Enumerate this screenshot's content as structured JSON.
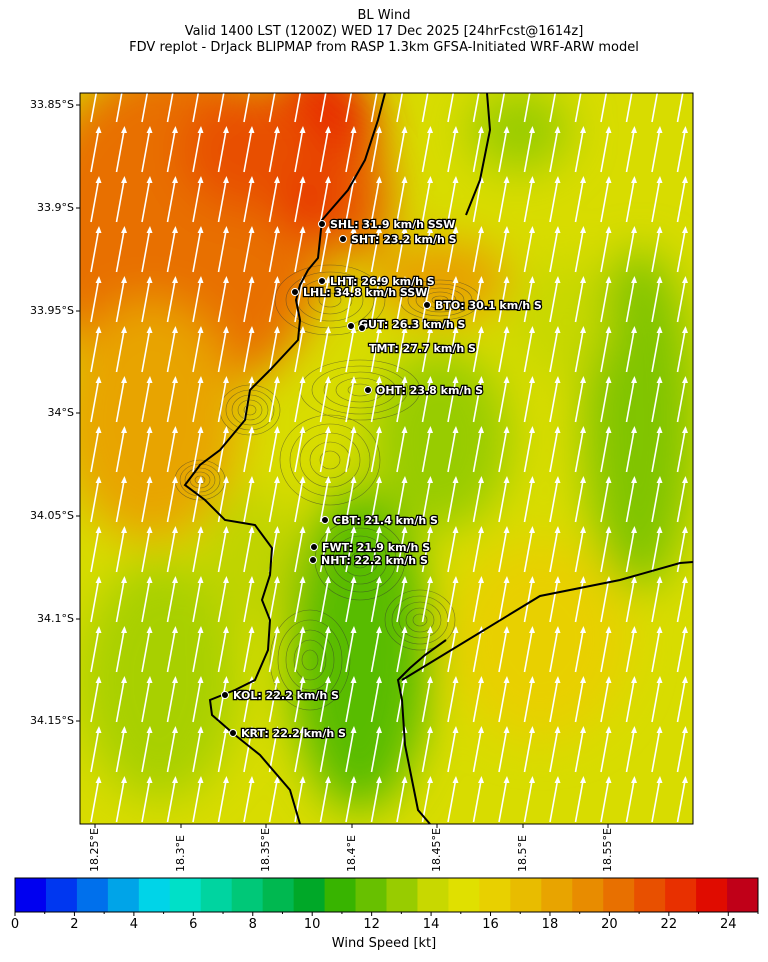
{
  "header": {
    "line1": "BL Wind",
    "line2": "Valid 1400 LST (1200Z) WED 17 Dec 2025 [24hrFcst@1614z]",
    "line3": "FDV replot - DrJack BLIPMAP from RASP 1.3km GFSA-Initiated WRF-ARW model"
  },
  "axes": {
    "lat_labels": [
      "33.85°S",
      "33.9°S",
      "33.95°S",
      "34°S",
      "34.05°S",
      "34.1°S",
      "34.15°S"
    ],
    "lon_labels": [
      "18.25°E",
      "18.3°E",
      "18.35°E",
      "18.4°E",
      "18.45°E",
      "18.5°E",
      "18.55°E"
    ]
  },
  "stations": [
    {
      "label": "SHL: 31.9 km/h SSW"
    },
    {
      "label": "SHT: 23.2 km/h S"
    },
    {
      "label": "LHT: 26.9 km/h S"
    },
    {
      "label": "LHL: 34.8 km/h SSW"
    },
    {
      "label": "BTO: 30.1 km/h S"
    },
    {
      "label": "GUT: 26.3 km/h S"
    },
    {
      "label": "TMT: 27.7 km/h S"
    },
    {
      "label": "OHT: 23.8 km/h S"
    },
    {
      "label": "CBT: 21.4 km/h S"
    },
    {
      "label": "FWT: 21.9 km/h S"
    },
    {
      "label": "NHT: 22.2 km/h S"
    },
    {
      "label": "KOL: 22.2 km/h S"
    },
    {
      "label": "KRT: 22.2 km/h S"
    }
  ],
  "colorbar": {
    "title": "Wind Speed [kt]",
    "tick_labels": [
      "0",
      "2",
      "4",
      "6",
      "8",
      "10",
      "12",
      "14",
      "16",
      "18",
      "20",
      "22",
      "24"
    ],
    "colors": [
      "#0000f0",
      "#0037f0",
      "#0070ec",
      "#00a4e8",
      "#00d4e8",
      "#00e0c8",
      "#00d4a0",
      "#00c878",
      "#00b850",
      "#00a828",
      "#38b400",
      "#68c000",
      "#98cc00",
      "#c8d800",
      "#e0e000",
      "#e8d000",
      "#e8bc00",
      "#e8a400",
      "#e88c00",
      "#e87000",
      "#e85000",
      "#e83000",
      "#e00c00",
      "#c00018"
    ]
  }
}
